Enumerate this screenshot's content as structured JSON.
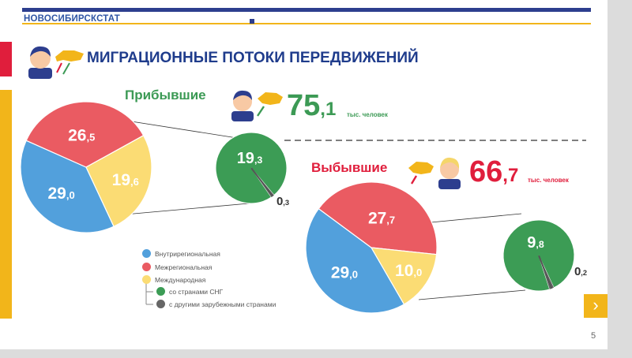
{
  "header": {
    "brand": "НОВОСИБИРСКСТАТ"
  },
  "title": "МИГРАЦИОННЫЕ ПОТОКИ ПЕРЕДВИЖЕНИЙ",
  "arrivals": {
    "label": "Прибывшие",
    "total_int": "75",
    "total_dec": "1",
    "unit": "тыс. человек"
  },
  "departures": {
    "label": "Выбывшие",
    "total_int": "66",
    "total_dec": "7",
    "unit": "тыс. человек"
  },
  "legend": {
    "intraregional": "Внутрирегиональная",
    "interregional": "Межрегиональная",
    "international": "Международная",
    "cis": "со странами СНГ",
    "other": "с другими зарубежными странами"
  },
  "page_number": "5",
  "colors": {
    "intraregional": "#52a0dc",
    "interregional": "#ea5b62",
    "international": "#fbdc74",
    "cis": "#3c9c55",
    "other": "#666666",
    "arrivals_accent": "#3c9a55",
    "departures_accent": "#e01e3c",
    "title": "#1f3c8c",
    "yellow_bar": "#f2b51a"
  },
  "chart_data": [
    {
      "type": "pie",
      "name": "Прибывшие",
      "slices": [
        {
          "label": "Внутрирегиональная",
          "value": 29.0,
          "display": [
            "29",
            "0"
          ]
        },
        {
          "label": "Межрегиональная",
          "value": 26.5,
          "display": [
            "26",
            "5"
          ]
        },
        {
          "label": "Международная",
          "value": 19.6,
          "display": [
            "19",
            "6"
          ]
        }
      ],
      "breakdown": [
        {
          "label": "со странами СНГ",
          "value": 19.3,
          "display": [
            "19",
            "3"
          ]
        },
        {
          "label": "с другими зарубежными странами",
          "value": 0.3,
          "display": [
            "0",
            "3"
          ]
        }
      ]
    },
    {
      "type": "pie",
      "name": "Выбывшие",
      "slices": [
        {
          "label": "Внутрирегиональная",
          "value": 29.0,
          "display": [
            "29",
            "0"
          ]
        },
        {
          "label": "Межрегиональная",
          "value": 27.7,
          "display": [
            "27",
            "7"
          ]
        },
        {
          "label": "Международная",
          "value": 10.0,
          "display": [
            "10",
            "0"
          ]
        }
      ],
      "breakdown": [
        {
          "label": "со странами СНГ",
          "value": 9.8,
          "display": [
            "9",
            "8"
          ]
        },
        {
          "label": "с другими зарубежными странами",
          "value": 0.2,
          "display": [
            "0",
            "2"
          ]
        }
      ]
    }
  ]
}
